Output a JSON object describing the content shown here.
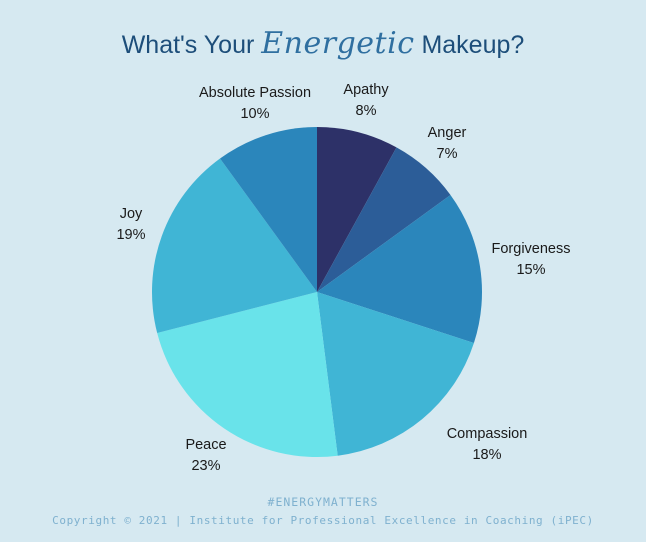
{
  "header": {
    "title_prefix": "What's Your ",
    "title_accent": "Energetic",
    "title_suffix": " Makeup?"
  },
  "footer": {
    "hashtag": "#ENERGYMATTERS",
    "copyright": "Copyright © 2021 | Institute for Professional Excellence in Coaching (iPEC)"
  },
  "chart_data": {
    "type": "pie",
    "slices": [
      {
        "label": "Apathy",
        "value": 8,
        "value_label": "8%",
        "color": "#2d3168"
      },
      {
        "label": "Anger",
        "value": 7,
        "value_label": "7%",
        "color": "#2c5d98"
      },
      {
        "label": "Forgiveness",
        "value": 15,
        "value_label": "15%",
        "color": "#2b86bb"
      },
      {
        "label": "Compassion",
        "value": 18,
        "value_label": "18%",
        "color": "#40b5d5"
      },
      {
        "label": "Peace",
        "value": 23,
        "value_label": "23%",
        "color": "#69e3ea"
      },
      {
        "label": "Joy",
        "value": 19,
        "value_label": "19%",
        "color": "#40b5d5"
      },
      {
        "label": "Absolute Passion",
        "value": 10,
        "value_label": "10%",
        "color": "#2b86bb"
      }
    ],
    "start_angle": "12 o'clock",
    "direction": "clockwise"
  }
}
